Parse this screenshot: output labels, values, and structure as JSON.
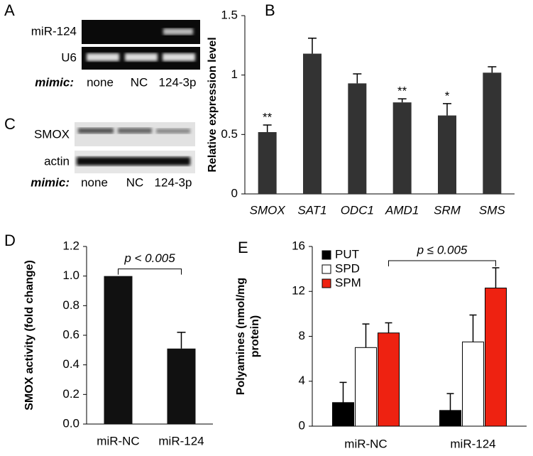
{
  "gels": [
    {
      "letter": "A",
      "rows": [
        "miR-124",
        "U6"
      ],
      "mimic_label": "mimic:",
      "lanes": [
        "none",
        "NC",
        "124-3p"
      ]
    },
    {
      "letter": "C",
      "rows": [
        "SMOX",
        "actin"
      ],
      "mimic_label": "mimic:",
      "lanes": [
        "none",
        "NC",
        "124-3p"
      ]
    }
  ],
  "chart_data": [
    {
      "type": "bar",
      "panel": "B",
      "ylabel": [
        "Relative expression level"
      ],
      "categories": [
        "SMOX",
        "SAT1",
        "ODC1",
        "AMD1",
        "SRM",
        "SMS"
      ],
      "italic_categories": true,
      "values": [
        0.52,
        1.18,
        0.93,
        0.77,
        0.66,
        1.02
      ],
      "errors": [
        0.06,
        0.13,
        0.08,
        0.03,
        0.1,
        0.05
      ],
      "annotations": [
        "**",
        null,
        null,
        "**",
        "*",
        null
      ],
      "color": "#333333",
      "ylim": [
        0,
        1.5
      ],
      "yticks": [
        0,
        0.5,
        1,
        1.5
      ]
    },
    {
      "type": "bar",
      "panel": "D",
      "ylabel": [
        "SMOX activity (fold change)"
      ],
      "categories": [
        "miR-NC",
        "miR-124"
      ],
      "values": [
        1.0,
        0.51
      ],
      "errors": [
        null,
        0.11
      ],
      "color": "#111111",
      "ylim": [
        0,
        1.2
      ],
      "yticks": [
        {
          "value": 0,
          "label": "0.0"
        },
        {
          "value": 0.2,
          "label": "0.2"
        },
        {
          "value": 0.4,
          "label": "0.4"
        },
        {
          "value": 0.6,
          "label": "0.6"
        },
        {
          "value": 0.8,
          "label": "0.8"
        },
        {
          "value": 1.0,
          "label": "1.0"
        },
        {
          "value": 1.2,
          "label": "1.2"
        }
      ],
      "significance": "p < 0.005"
    },
    {
      "type": "grouped_bar",
      "panel": "E",
      "ylabel": [
        "Polyamines (nmol/mg",
        "protein)"
      ],
      "categories": [
        "miR-NC",
        "miR-124"
      ],
      "series": [
        {
          "name": "PUT",
          "color": "#000000",
          "values": [
            2.1,
            1.4
          ],
          "errors": [
            1.8,
            1.5
          ]
        },
        {
          "name": "SPD",
          "color": "#ffffff",
          "values": [
            7.0,
            7.5
          ],
          "errors": [
            2.1,
            2.4
          ]
        },
        {
          "name": "SPM",
          "color": "#ee2211",
          "values": [
            8.3,
            12.3
          ],
          "errors": [
            0.9,
            1.8
          ]
        }
      ],
      "ylim": [
        0,
        16
      ],
      "yticks": [
        0,
        4,
        8,
        12,
        16
      ],
      "legend": "top-left",
      "significance": "p ≤ 0.005"
    }
  ]
}
